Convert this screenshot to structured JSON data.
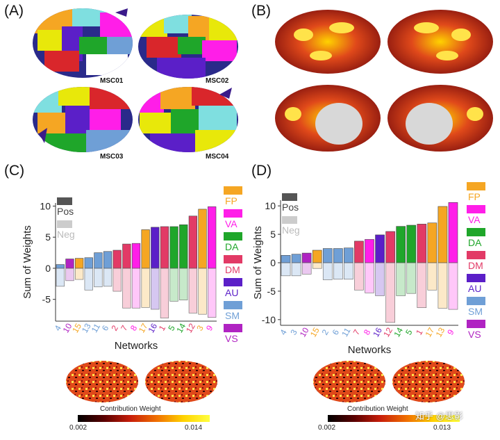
{
  "panels": {
    "A": {
      "label": "(A)",
      "subjects": [
        "MSC01",
        "MSC02",
        "MSC03",
        "MSC04"
      ]
    },
    "B": {
      "label": "(B)"
    },
    "C": {
      "label": "(C)"
    },
    "D": {
      "label": "(D)"
    }
  },
  "legend": {
    "pos_label": "Pos",
    "neg_label": "Neg",
    "pos_color": "#555555",
    "neg_color": "#cccccc",
    "networks": [
      {
        "name": "FP",
        "color": "#f5a623"
      },
      {
        "name": "VA",
        "color": "#ff1ee8"
      },
      {
        "name": "DA",
        "color": "#1fa62a"
      },
      {
        "name": "DM",
        "color": "#e23a66"
      },
      {
        "name": "AU",
        "color": "#5b1fc8"
      },
      {
        "name": "SM",
        "color": "#6f9fd6"
      },
      {
        "name": "VS",
        "color": "#b023c2"
      }
    ]
  },
  "colorbars": [
    {
      "title": "Contribution Weight",
      "min_label": "0.002",
      "max_label": "0.014"
    },
    {
      "title": "Contribution Weight",
      "min_label": "0.002",
      "max_label": "0.013"
    }
  ],
  "watermark": "知乎 @思影",
  "chart_data": [
    {
      "panel": "C",
      "type": "bar",
      "ylabel": "Sum of Weights",
      "xlabel": "Networks",
      "ylim": [
        -8.5,
        10.5
      ],
      "yticks": [
        -5,
        0,
        5,
        10
      ],
      "categories": [
        "4",
        "10",
        "15",
        "13",
        "11",
        "6",
        "2",
        "7",
        "8",
        "17",
        "16",
        "1",
        "5",
        "14",
        "12",
        "3",
        "9"
      ],
      "category_network": [
        "SM",
        "VS",
        "FP",
        "SM",
        "SM",
        "SM",
        "DM",
        "DM",
        "VA",
        "FP",
        "AU",
        "DM",
        "DA",
        "DA",
        "DM",
        "FP",
        "VA"
      ],
      "series": [
        {
          "name": "Pos",
          "values": [
            0.6,
            1.5,
            1.6,
            1.7,
            2.5,
            2.7,
            2.9,
            3.9,
            4.0,
            6.2,
            6.6,
            6.7,
            6.7,
            7.0,
            8.4,
            9.5,
            9.9
          ]
        },
        {
          "name": "Neg",
          "values": [
            -2.9,
            -2.0,
            -1.8,
            -3.5,
            -3.0,
            -2.9,
            -3.7,
            -6.4,
            -6.4,
            -6.3,
            -6.6,
            -8.0,
            -5.3,
            -5.1,
            -7.2,
            -7.4,
            -7.9
          ]
        }
      ]
    },
    {
      "panel": "D",
      "type": "bar",
      "ylabel": "Sum of Weights",
      "xlabel": "Networks",
      "ylim": [
        -11,
        11
      ],
      "yticks": [
        -10,
        -5,
        0,
        5,
        10
      ],
      "categories": [
        "4",
        "3",
        "10",
        "15",
        "2",
        "6",
        "11",
        "7",
        "8",
        "16",
        "12",
        "14",
        "5",
        "1",
        "17",
        "13",
        "9"
      ],
      "category_network": [
        "SM",
        "SM",
        "VS",
        "FP",
        "SM",
        "SM",
        "SM",
        "DM",
        "VA",
        "AU",
        "DM",
        "DA",
        "DA",
        "DM",
        "FP",
        "FP",
        "VA"
      ],
      "series": [
        {
          "name": "Pos",
          "values": [
            1.3,
            1.5,
            1.7,
            2.2,
            2.5,
            2.5,
            2.6,
            3.8,
            4.1,
            4.9,
            5.5,
            6.4,
            6.6,
            6.8,
            7.0,
            9.9,
            10.6
          ]
        },
        {
          "name": "Neg",
          "values": [
            -2.3,
            -2.3,
            -2.0,
            -1.0,
            -3.0,
            -2.9,
            -2.9,
            -4.8,
            -5.3,
            -5.8,
            -10.5,
            -5.8,
            -5.4,
            -7.9,
            -4.8,
            -8.0,
            -8.2
          ]
        }
      ]
    }
  ]
}
